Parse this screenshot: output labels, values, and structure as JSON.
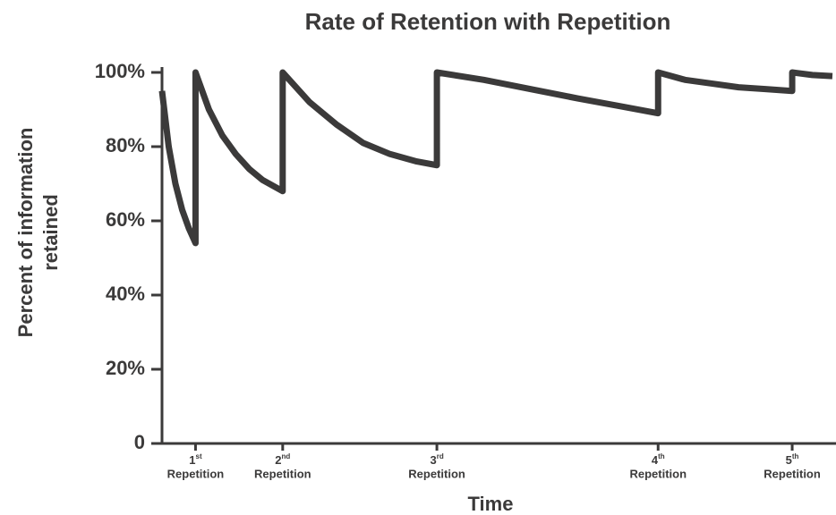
{
  "chart_data": {
    "type": "line",
    "title": "Rate of Retention with Repetition",
    "ylabel": [
      "Percent of information",
      "retained"
    ],
    "xlabel": "Time",
    "xlim": [
      0,
      100
    ],
    "ylim": [
      0,
      100
    ],
    "yticks": [
      0,
      {
        "value": 20,
        "label": "20%"
      },
      {
        "value": 40,
        "label": "40%"
      },
      {
        "value": 60,
        "label": "60%"
      },
      {
        "value": 80,
        "label": "80%"
      },
      {
        "value": 100,
        "label": "100%"
      }
    ],
    "xticks": [
      {
        "value": 5,
        "ordinal": "1",
        "suffix": "st",
        "label": "Repetition"
      },
      {
        "value": 18,
        "ordinal": "2",
        "suffix": "nd",
        "label": "Repetition"
      },
      {
        "value": 41,
        "ordinal": "3",
        "suffix": "rd",
        "label": "Repetition"
      },
      {
        "value": 74,
        "ordinal": "4",
        "suffix": "th",
        "label": "Repetition"
      },
      {
        "value": 94,
        "ordinal": "5",
        "suffix": "th",
        "label": "Repetition"
      }
    ],
    "grid": false,
    "series": [
      {
        "color": "#3b3a3a",
        "x": [
          0,
          1,
          2,
          3,
          4,
          5,
          5,
          7,
          9,
          11,
          13,
          15,
          18,
          18,
          22,
          26,
          30,
          34,
          38,
          41,
          41,
          48,
          55,
          62,
          68,
          74,
          74,
          78,
          82,
          86,
          90,
          94,
          94,
          97,
          100
        ],
        "values": [
          95,
          80,
          70,
          63,
          58,
          54,
          100,
          90,
          83,
          78,
          74,
          71,
          68,
          100,
          92,
          86,
          81,
          78,
          76,
          75,
          100,
          98,
          95.5,
          93,
          91,
          89,
          100,
          98,
          97,
          96,
          95.5,
          95,
          100,
          99.3,
          99
        ]
      }
    ]
  }
}
